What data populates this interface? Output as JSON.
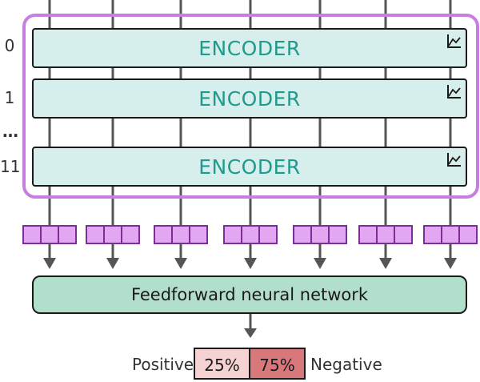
{
  "layers": {
    "labels": [
      "0",
      "1",
      "11"
    ],
    "ellipsis": "…"
  },
  "encoders": [
    {
      "label": "ENCODER",
      "icon": "trend-icon"
    },
    {
      "label": "ENCODER",
      "icon": "trend-icon"
    },
    {
      "label": "ENCODER",
      "icon": "trend-icon"
    }
  ],
  "token_vectors": {
    "count": 7,
    "cells_per_vector": 3
  },
  "head": {
    "label": "Feedforward neural network"
  },
  "output": {
    "positive_label": "Positive",
    "negative_label": "Negative",
    "positive_value": "25%",
    "negative_value": "75%"
  },
  "colors": {
    "encoder_fill": "#d6efec",
    "encoder_text": "#1f9a8c",
    "highlight_border": "#c77ee0",
    "vector_fill": "#e3a6f2",
    "ffn_fill": "#b2dfcc",
    "positive_fill": "#f6d3d3",
    "negative_fill": "#d9787a"
  }
}
